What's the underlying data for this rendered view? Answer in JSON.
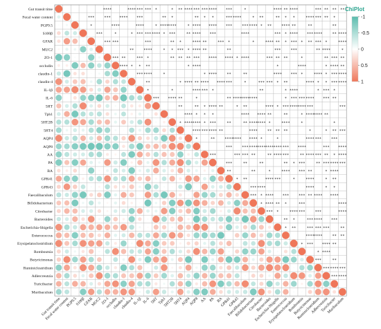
{
  "chart_data": {
    "type": "heatmap",
    "subtype": "correlation-matrix-upper-stars-lower-circles",
    "variables": [
      "Gut transit time",
      "Fecal water content",
      "PGP9.5",
      "S100β",
      "GFAR",
      "MUC2",
      "ZO-1",
      "occludin",
      "claudin-1",
      "claudin-4",
      "IL-1β",
      "IL-6",
      "5HT",
      "Tph1",
      "5HT2B",
      "5HT4",
      "AQP4",
      "AQP8",
      "AA",
      "PA",
      "BA",
      "GPR41",
      "GPR43",
      "Faecalibaculum",
      "Bifidobacterium",
      "Citrobacter",
      "Bacteroides",
      "Escherichia-Shigella",
      "Enterococcus",
      "Erysipelatoclostridium",
      "Romboutsia",
      "Butyricimonas",
      "Ruminiclostridium",
      "Adlercreutzia",
      "Turicibacter",
      "Muribaculum"
    ],
    "color_scale": {
      "min": -1,
      "max": 1,
      "negative_color": "#5bbcae",
      "positive_color": "#ef7659",
      "neutral_color": "#ffffff"
    },
    "legend": {
      "title": "ChiPlot",
      "ticks": [
        "-1",
        "-0.5",
        "0",
        "0.5",
        "1"
      ],
      "placement": "top-right"
    },
    "significance_symbols": {
      "p<0.05": "*",
      "p<0.01": "**",
      "p<0.001": "***",
      "p<0.0001": "****"
    }
  }
}
